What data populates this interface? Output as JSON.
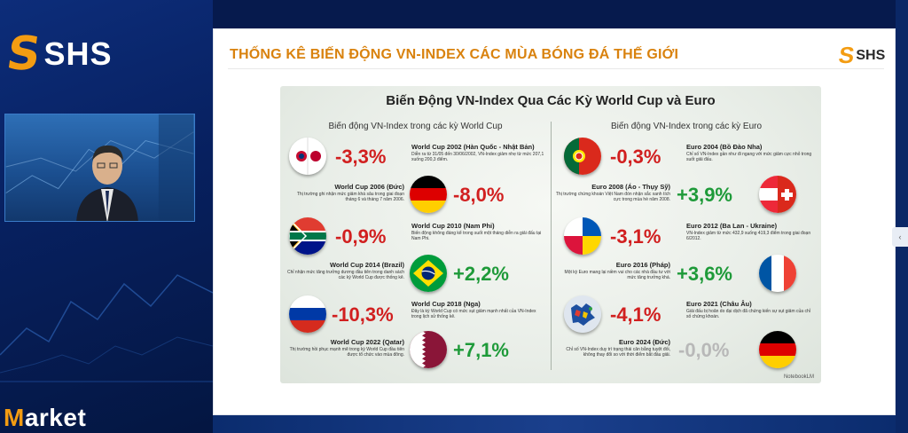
{
  "brand": {
    "mark": "S",
    "name": "SHS"
  },
  "bottom_label": {
    "first": "M",
    "rest": "arket"
  },
  "slide": {
    "title": "THỐNG KÊ BIẾN ĐỘNG VN-INDEX CÁC MÙA BÓNG ĐÁ THẾ GIỚI",
    "logo_mark": "S",
    "logo_text": "SHS"
  },
  "infographic": {
    "title": "Biến Động VN-Index Qua Các Kỳ World Cup và Euro",
    "left_header": "Biến động VN-Index trong các kỳ World Cup",
    "right_header": "Biến động VN-Index trong các kỳ Euro",
    "footer": "NotebookLM",
    "world_cup": [
      {
        "pct": "-3,3%",
        "event": "World Cup 2002 (Hàn Quốc - Nhật Bản)",
        "desc": "Diễn ra từ 31/05 đến 30/06/2002, VN-Index giảm nhẹ từ mức 207,1 xuống 200,3 điểm.",
        "trend": "neg"
      },
      {
        "pct": "-8,0%",
        "event": "World Cup 2006 (Đức)",
        "desc": "Thị trường ghi nhận mức giảm khá sâu trong giai đoạn tháng 6 và tháng 7 năm 2006.",
        "trend": "neg"
      },
      {
        "pct": "-0,9%",
        "event": "World Cup 2010 (Nam Phi)",
        "desc": "Biến động không đáng kể trong suốt một tháng diễn ra giải đấu tại Nam Phi.",
        "trend": "neg"
      },
      {
        "pct": "+2,2%",
        "event": "World Cup 2014 (Brazil)",
        "desc": "Chỉ nhận mức tăng trưởng dương đầu tiên trong danh sách các kỳ World Cup được thống kê.",
        "trend": "pos"
      },
      {
        "pct": "-10,3%",
        "event": "World Cup 2018 (Nga)",
        "desc": "Đây là kỳ World Cup có mức sụt giảm mạnh nhất của VN-Index trong lịch sử thống kê.",
        "trend": "neg"
      },
      {
        "pct": "+7,1%",
        "event": "World Cup 2022 (Qatar)",
        "desc": "Thị trường hồi phục mạnh mẽ trong kỳ World Cup đầu tiên được tổ chức vào mùa đông.",
        "trend": "pos"
      }
    ],
    "euro": [
      {
        "pct": "-0,3%",
        "event": "Euro 2004 (Bồ Đào Nha)",
        "desc": "Chỉ số VN-Index gần như đi ngang với mức giảm cực nhỏ trong suốt giải đấu.",
        "trend": "neg"
      },
      {
        "pct": "+3,9%",
        "event": "Euro 2008 (Áo - Thụy Sỹ)",
        "desc": "Thị trường chứng khoán Việt Nam đón nhận sắc xanh tích cực trong mùa hè năm 2008.",
        "trend": "pos"
      },
      {
        "pct": "-3,1%",
        "event": "Euro 2012 (Ba Lan - Ukraine)",
        "desc": "VN-Index giảm từ mức 432,9 xuống 419,3 điểm trong giai đoạn 6/2012.",
        "trend": "neg"
      },
      {
        "pct": "+3,6%",
        "event": "Euro 2016 (Pháp)",
        "desc": "Một kỳ Euro mang lại niềm vui cho các nhà đầu tư với mức tăng trưởng khá.",
        "trend": "pos"
      },
      {
        "pct": "-4,1%",
        "event": "Euro 2021 (Châu Âu)",
        "desc": "Giải đấu bị hoãn do đại dịch đã chứng kiến sự sụt giảm của chỉ số chứng khoán.",
        "trend": "neg"
      },
      {
        "pct": "-0,0%",
        "event": "Euro 2024 (Đức)",
        "desc": "Chỉ số VN-Index duy trì trạng thái cân bằng tuyệt đối, không thay đổi so với thời điểm bắt đầu giải.",
        "trend": "neu"
      }
    ]
  },
  "colors": {
    "accent_orange": "#f39c12",
    "title_orange": "#d9820e",
    "negative": "#d11f1f",
    "positive": "#1e9a39",
    "neutral": "#b8b8b8",
    "background_navy": "#061a4d"
  }
}
